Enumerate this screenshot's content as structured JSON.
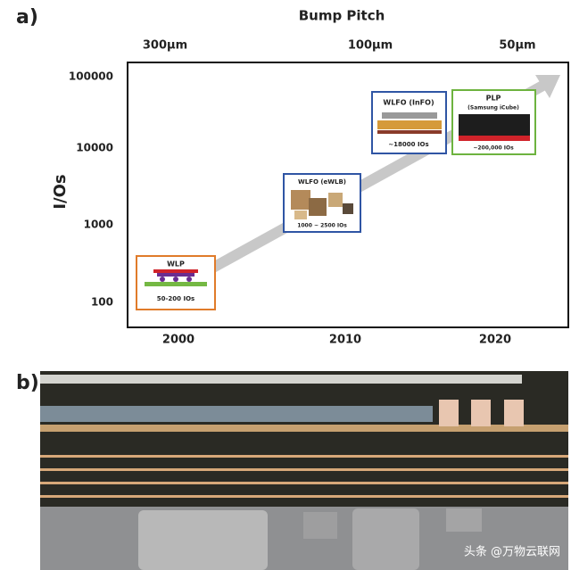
{
  "panel_a": {
    "label": "a)",
    "title": "Bump Pitch",
    "pitch_labels": [
      "300µm",
      "100µm",
      "50µm"
    ],
    "y_label": "I/Os",
    "y_ticks": [
      100000,
      10000,
      1000,
      100
    ],
    "x_ticks": [
      2000,
      2010,
      2020
    ],
    "boxes": [
      {
        "title": "WLP",
        "caption": "50-200 IOs"
      },
      {
        "title": "WLFO (eWLB)",
        "caption": "1000 ~ 2500 IOs"
      },
      {
        "title": "WLFO (InFO)",
        "caption": "~18000 IOs"
      },
      {
        "title": "PLP",
        "subtitle": "(Samsung iCube)",
        "caption": "~200,000 IOs"
      }
    ]
  },
  "panel_b": {
    "label": "b)",
    "watermark": "头条 @万物云联网"
  }
}
